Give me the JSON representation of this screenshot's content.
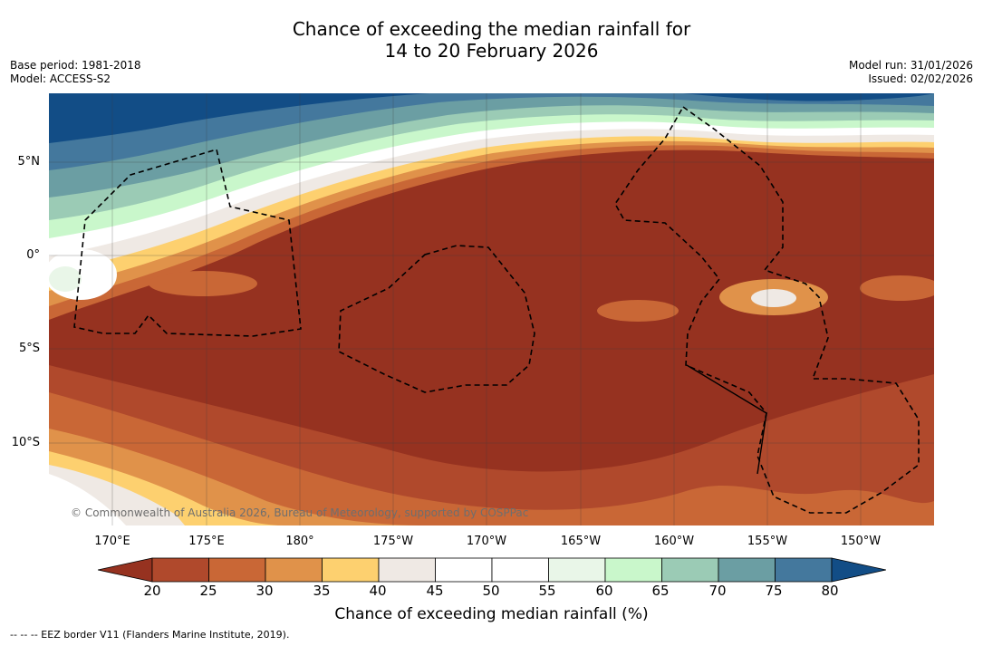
{
  "title": {
    "line1": "Chance of exceeding the median rainfall for",
    "line2": "14 to 20 February 2026"
  },
  "meta_left": {
    "base_period": "Base period: 1981-2018",
    "model": "Model: ACCESS-S2"
  },
  "meta_right": {
    "model_run": "Model run: 31/01/2026",
    "issued": "Issued: 02/02/2026"
  },
  "map": {
    "lat_labels": [
      "5°N",
      "0°",
      "5°S",
      "10°S"
    ],
    "lon_labels": [
      "170°E",
      "175°E",
      "180°",
      "175°W",
      "170°W",
      "165°W",
      "160°W",
      "155°W",
      "150°W"
    ],
    "copyright": "© Commonwealth of Australia 2026, Bureau of Meteorology, supported by COSPPac",
    "colors": {
      "p15": "#963220",
      "p20": "#b0492c",
      "p25": "#c96736",
      "p30": "#e0924a",
      "p35": "#fdd06f",
      "p40": "#efe9e4",
      "p45": "#ffffff",
      "p55": "#e9f6e8",
      "p60": "#c9f7cb",
      "p65": "#9bcbb5",
      "p70": "#6b9ea3",
      "p75": "#44789d",
      "p80": "#124d86"
    }
  },
  "colorbar": {
    "ticks": [
      "20",
      "25",
      "30",
      "35",
      "40",
      "45",
      "50",
      "55",
      "60",
      "65",
      "70",
      "75",
      "80"
    ],
    "colors": [
      "#963220",
      "#b0492c",
      "#c96736",
      "#e0924a",
      "#fdd06f",
      "#efe9e4",
      "#ffffff",
      "#ffffff",
      "#e9f6e8",
      "#c9f7cb",
      "#9bcbb5",
      "#6b9ea3",
      "#44789d",
      "#124d86"
    ],
    "label": "Chance of exceeding median rainfall (%)"
  },
  "footnote": "--  --  -- EEZ border V11 (Flanders Marine Institute, 2019)."
}
